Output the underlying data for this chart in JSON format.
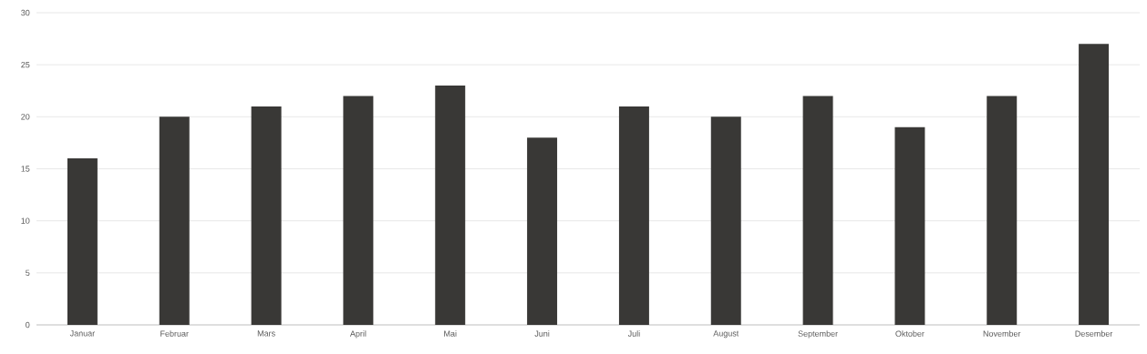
{
  "chart_data": {
    "type": "bar",
    "categories": [
      "Januar",
      "Februar",
      "Mars",
      "April",
      "Mai",
      "Juni",
      "Juli",
      "August",
      "September",
      "Oktober",
      "November",
      "Desember"
    ],
    "values": [
      16,
      20,
      21,
      22,
      23,
      18,
      21,
      20,
      22,
      19,
      22,
      27
    ],
    "color": "#393836",
    "ylim": [
      0,
      30
    ],
    "yticks": [
      0,
      5,
      10,
      15,
      20,
      25,
      30
    ],
    "grid": "y"
  }
}
